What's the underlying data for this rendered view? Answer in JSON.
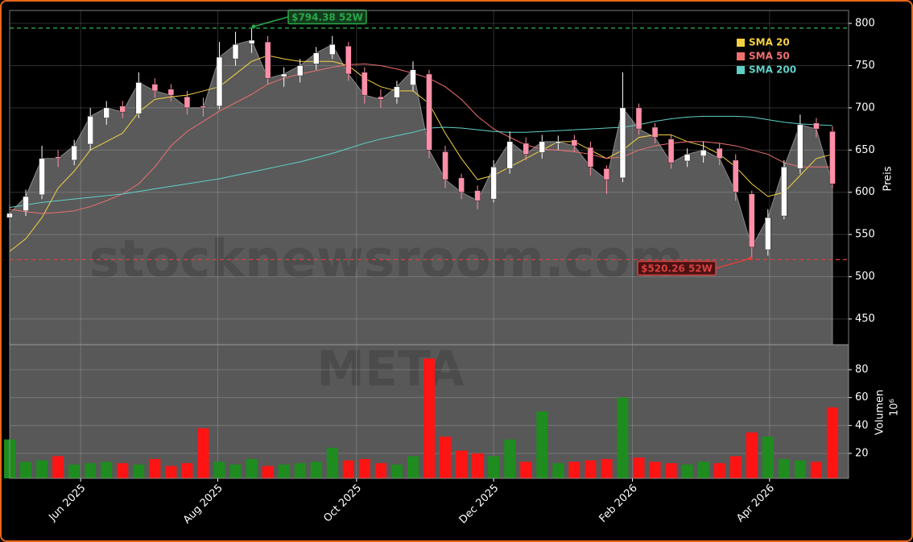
{
  "chart_data": [
    {
      "type": "candlestick",
      "x": [
        0,
        1,
        2,
        3,
        4,
        5,
        6,
        7,
        8,
        9,
        10,
        11,
        12,
        13,
        14,
        15,
        16,
        17,
        18,
        19,
        20,
        21,
        22,
        23,
        24,
        25,
        26,
        27,
        28,
        29,
        30,
        31,
        32,
        33,
        34,
        35,
        36,
        37,
        38,
        39,
        40,
        41,
        42,
        43,
        44,
        45,
        46,
        47,
        48,
        49,
        50,
        51
      ],
      "open": [
        570,
        578,
        597,
        642,
        638,
        657,
        688,
        702,
        693,
        728,
        722,
        713,
        702,
        702,
        758,
        776,
        778,
        737,
        738,
        752,
        763,
        773,
        742,
        713,
        712,
        727,
        740,
        648,
        617,
        602,
        592,
        628,
        658,
        647,
        658,
        662,
        653,
        628,
        617,
        700,
        677,
        663,
        637,
        643,
        652,
        638,
        598,
        532,
        572,
        628,
        682,
        672
      ],
      "high": [
        585,
        603,
        655,
        650,
        662,
        700,
        708,
        708,
        742,
        735,
        728,
        720,
        712,
        778,
        790,
        794,
        785,
        748,
        758,
        772,
        785,
        778,
        748,
        722,
        732,
        755,
        745,
        655,
        622,
        608,
        638,
        672,
        665,
        668,
        667,
        668,
        660,
        632,
        742,
        705,
        682,
        668,
        652,
        660,
        658,
        645,
        602,
        580,
        638,
        692,
        688,
        678
      ],
      "low": [
        555,
        572,
        592,
        630,
        632,
        650,
        680,
        688,
        688,
        712,
        708,
        692,
        690,
        698,
        750,
        765,
        728,
        725,
        730,
        745,
        758,
        732,
        705,
        700,
        705,
        720,
        640,
        605,
        592,
        580,
        588,
        622,
        638,
        640,
        650,
        648,
        620,
        598,
        612,
        668,
        658,
        628,
        630,
        635,
        632,
        590,
        520,
        525,
        568,
        622,
        665,
        605
      ],
      "close": [
        575,
        595,
        640,
        640,
        655,
        690,
        700,
        695,
        730,
        720,
        715,
        700,
        700,
        760,
        775,
        780,
        735,
        740,
        750,
        765,
        775,
        740,
        715,
        710,
        725,
        745,
        650,
        615,
        600,
        590,
        630,
        660,
        645,
        660,
        660,
        655,
        630,
        615,
        700,
        675,
        665,
        635,
        645,
        650,
        640,
        600,
        535,
        570,
        630,
        680,
        675,
        610
      ],
      "up_color": "#ffffff",
      "down_color": "#ff8fa8",
      "series": [
        {
          "name": "SMA 20",
          "color": "#f5d142",
          "values": [
            530,
            545,
            570,
            605,
            625,
            650,
            660,
            670,
            695,
            710,
            713,
            715,
            720,
            725,
            740,
            755,
            762,
            758,
            755,
            755,
            755,
            750,
            735,
            725,
            720,
            720,
            705,
            670,
            640,
            615,
            620,
            630,
            640,
            650,
            660,
            660,
            650,
            640,
            650,
            665,
            668,
            668,
            660,
            655,
            645,
            630,
            610,
            595,
            600,
            620,
            640,
            645
          ]
        },
        {
          "name": "SMA 50",
          "color": "#f07070",
          "values": [
            580,
            577,
            575,
            576,
            578,
            583,
            590,
            598,
            610,
            630,
            655,
            672,
            684,
            696,
            706,
            716,
            728,
            735,
            740,
            744,
            748,
            751,
            752,
            750,
            746,
            741,
            735,
            725,
            710,
            690,
            675,
            665,
            656,
            651,
            650,
            648,
            645,
            640,
            642,
            650,
            655,
            658,
            660,
            660,
            658,
            655,
            650,
            645,
            635,
            630,
            630,
            630
          ]
        },
        {
          "name": "SMA 200",
          "color": "#5fd0c8",
          "values": [
            582,
            585,
            588,
            590,
            592,
            594,
            596,
            598,
            601,
            604,
            607,
            610,
            613,
            616,
            620,
            624,
            628,
            632,
            636,
            641,
            646,
            652,
            658,
            663,
            667,
            671,
            676,
            677,
            676,
            674,
            672,
            671,
            671,
            672,
            673,
            674,
            675,
            676,
            677,
            680,
            684,
            687,
            689,
            690,
            690,
            690,
            689,
            686,
            683,
            681,
            680,
            679
          ]
        }
      ],
      "xlim": [
        0,
        52
      ],
      "ylim": [
        419.5,
        815.3
      ],
      "yticks": [
        450,
        500,
        550,
        600,
        650,
        700,
        750,
        800
      ],
      "ylabel": "Preis",
      "grid": true,
      "legend": "upper right",
      "annotations": [
        {
          "text": "$794.38 52W",
          "value": 794.38,
          "color": "#2aa84a"
        },
        {
          "text": "$520.26 52W",
          "value": 520.26,
          "color": "#d94040"
        }
      ],
      "watermark": "stocknewsroom.com"
    },
    {
      "type": "bar",
      "x": [
        0,
        1,
        2,
        3,
        4,
        5,
        6,
        7,
        8,
        9,
        10,
        11,
        12,
        13,
        14,
        15,
        16,
        17,
        18,
        19,
        20,
        21,
        22,
        23,
        24,
        25,
        26,
        27,
        28,
        29,
        30,
        31,
        32,
        33,
        34,
        35,
        36,
        37,
        38,
        39,
        40,
        41,
        42,
        43,
        44,
        45,
        46,
        47,
        48,
        49,
        50,
        51
      ],
      "values": [
        30,
        14,
        15,
        18,
        12,
        13,
        14,
        13,
        12,
        16,
        11,
        13,
        38,
        14,
        12,
        16,
        11,
        12,
        13,
        14,
        24,
        15,
        16,
        13,
        12,
        18,
        88,
        32,
        22,
        20,
        18,
        30,
        14,
        50,
        13,
        14,
        15,
        16,
        60,
        17,
        14,
        13,
        12,
        14,
        13,
        18,
        35,
        32,
        16,
        15,
        14,
        53
      ],
      "up_color": "#1e8c1e",
      "down_color": "#ff1414",
      "xlim": [
        0,
        52
      ],
      "xticks": [
        {
          "value": 4.4,
          "label": "Jun 2025"
        },
        {
          "value": 12.9,
          "label": "Aug 2025"
        },
        {
          "value": 21.5,
          "label": "Oct 2025"
        },
        {
          "value": 30.0,
          "label": "Dec 2025"
        },
        {
          "value": 38.6,
          "label": "Feb 2026"
        },
        {
          "value": 47.1,
          "label": "Apr 2026"
        }
      ],
      "ylim": [
        2.1,
        97.9
      ],
      "yticks": [
        20,
        40,
        60,
        80
      ],
      "ylabel": "Volumen",
      "offset_label": "10⁶",
      "grid": true,
      "watermark": "META"
    }
  ]
}
